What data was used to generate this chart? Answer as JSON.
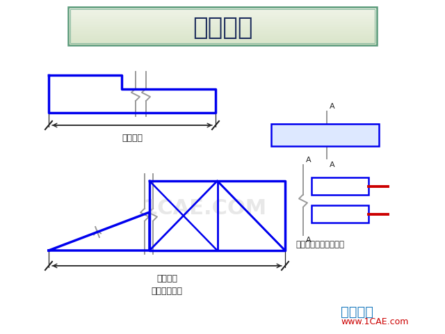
{
  "bg_color": "#ffffff",
  "title": "省略画法",
  "title_box_color_top": "#e8ede0",
  "title_box_color_bot": "#f5f8f0",
  "title_box_edge": "#5a8a6a",
  "title_color": "#1a2a5a",
  "blue": "#0000ee",
  "red": "#cc0000",
  "gray": "#999999",
  "dark": "#222222",
  "mid_gray": "#aaaaaa",
  "watermark": "1CAE.COM",
  "brand1": "仿真在线",
  "brand2": "www.1CAE.com",
  "label1": "标注原长",
  "label2": "标注原长",
  "label3": "折断省略画法",
  "label4": "构件局部不同省略画法"
}
